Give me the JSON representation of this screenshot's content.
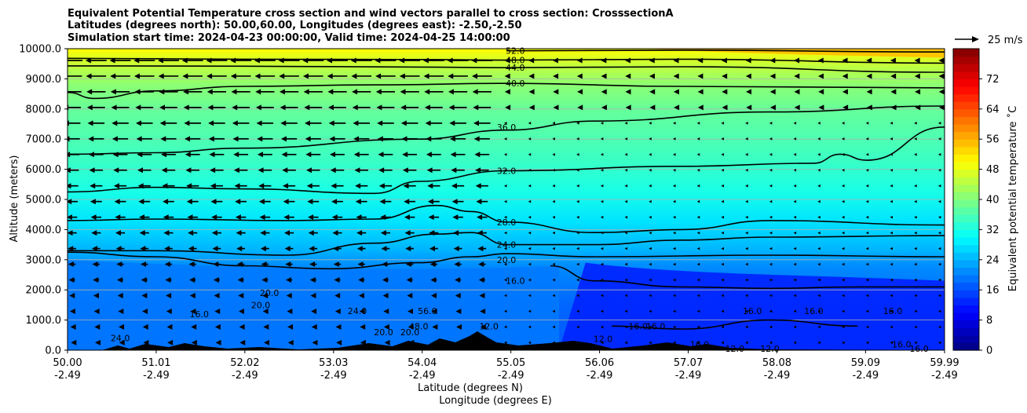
{
  "chart_data": {
    "type": "heatmap",
    "title_lines": [
      "Equivalent Potential Temperature cross section and wind vectors parallel to cross section: CrosssectionA",
      "Latitudes (degrees north): 50.00,60.00, Longitudes (degrees east): -2.50,-2.50",
      "Simulation start time: 2024-04-23 00:00:00, Valid time: 2024-04-25 14:00:00"
    ],
    "ylabel": "Altitude (meters)",
    "xlabel_lat": "Latitude (degrees N)",
    "xlabel_lon": "Longitude (degrees E)",
    "ylim": [
      0,
      10000
    ],
    "yticks": [
      0,
      1000,
      2000,
      3000,
      4000,
      5000,
      6000,
      7000,
      8000,
      9000,
      10000
    ],
    "ytick_labels": [
      "0.0",
      "1000.0",
      "2000.0",
      "3000.0",
      "4000.0",
      "5000.0",
      "6000.0",
      "7000.0",
      "8000.0",
      "9000.0",
      "10000.0"
    ],
    "xlim": [
      50.0,
      59.99
    ],
    "xticks": [
      50.0,
      51.01,
      52.02,
      53.03,
      54.04,
      55.05,
      56.06,
      57.07,
      58.08,
      59.09,
      59.99
    ],
    "xtick_lat_labels": [
      "50.00",
      "51.01",
      "52.02",
      "53.03",
      "54.04",
      "55.05",
      "56.06",
      "57.07",
      "58.08",
      "59.09",
      "59.99"
    ],
    "xtick_lon_labels": [
      "-2.49",
      "-2.49",
      "-2.49",
      "-2.49",
      "-2.49",
      "-2.49",
      "-2.49",
      "-2.49",
      "-2.49",
      "-2.49",
      "-2.49"
    ],
    "grid": "horizontal",
    "colorbar": {
      "label": "Equivalent potential temperature ˚C",
      "range": [
        0,
        80
      ],
      "ticks": [
        0,
        8,
        16,
        24,
        32,
        40,
        48,
        56,
        64,
        72
      ],
      "tick_labels": [
        "0",
        "8",
        "16",
        "24",
        "32",
        "40",
        "48",
        "56",
        "64",
        "72"
      ]
    },
    "quiver_key": {
      "label": "25 m/s",
      "speed": 25
    },
    "contour_labels": [
      "52.0",
      "48.0",
      "44.0",
      "40.0",
      "36.0",
      "32.0",
      "28.0",
      "24.0",
      "20.0",
      "16.0",
      "12.0",
      "20.0",
      "24.0",
      "16.0",
      "20.0",
      "24.0",
      "56.0",
      "48.0",
      "12.0",
      "16.0",
      "16.0",
      "16.0",
      "16.0",
      "12.0",
      "12.0",
      "16.0",
      "16.0",
      "20.0",
      "20.0",
      "16.0",
      "16.0"
    ],
    "contour_levels": [
      12,
      16,
      20,
      24,
      28,
      32,
      36,
      40,
      44,
      48,
      52
    ],
    "contours": [
      {
        "level": 52.0,
        "points": [
          [
            55.0,
            9930
          ],
          [
            57.0,
            9950
          ],
          [
            59.99,
            9890
          ]
        ]
      },
      {
        "level": 48.0,
        "points": [
          [
            50.0,
            9680
          ],
          [
            52.0,
            9650
          ],
          [
            54.0,
            9640
          ],
          [
            55.0,
            9620
          ],
          [
            57.0,
            9650
          ],
          [
            59.99,
            9520
          ]
        ]
      },
      {
        "level": 44.0,
        "points": [
          [
            50.0,
            9430
          ],
          [
            52.0,
            9420
          ],
          [
            54.0,
            9390
          ],
          [
            55.0,
            9370
          ],
          [
            57.0,
            9400
          ],
          [
            59.99,
            9220
          ]
        ]
      },
      {
        "level": 40.0,
        "points": [
          [
            50.0,
            8550
          ],
          [
            50.3,
            8350
          ],
          [
            51.0,
            8600
          ],
          [
            52.0,
            8750
          ],
          [
            53.5,
            8800
          ],
          [
            55.0,
            8850
          ],
          [
            57.0,
            8750
          ],
          [
            59.99,
            8700
          ]
        ]
      },
      {
        "level": 36.0,
        "points": [
          [
            50.0,
            6500
          ],
          [
            51.0,
            6550
          ],
          [
            52.0,
            6700
          ],
          [
            54.0,
            7000
          ],
          [
            55.0,
            7300
          ],
          [
            56.0,
            7600
          ],
          [
            58.0,
            7900
          ],
          [
            59.99,
            8100
          ]
        ]
      },
      {
        "level": 32.0,
        "points": [
          [
            50.0,
            5250
          ],
          [
            51.0,
            5400
          ],
          [
            52.0,
            5350
          ],
          [
            53.5,
            5200
          ],
          [
            54.0,
            5600
          ],
          [
            55.0,
            5950
          ],
          [
            57.0,
            6100
          ],
          [
            58.5,
            6200
          ],
          [
            58.8,
            6500
          ],
          [
            59.1,
            6300
          ],
          [
            59.99,
            7400
          ]
        ]
      },
      {
        "level": 28.0,
        "points": [
          [
            50.0,
            4300
          ],
          [
            51.0,
            4350
          ],
          [
            52.5,
            4300
          ],
          [
            53.5,
            4350
          ],
          [
            54.2,
            4800
          ],
          [
            54.6,
            4600
          ],
          [
            55.0,
            4250
          ],
          [
            56.0,
            3900
          ],
          [
            57.0,
            4000
          ],
          [
            58.0,
            4300
          ],
          [
            59.99,
            4150
          ]
        ]
      },
      {
        "level": 24.0,
        "points": [
          [
            50.0,
            3300
          ],
          [
            51.0,
            3300
          ],
          [
            52.5,
            3150
          ],
          [
            53.5,
            3550
          ],
          [
            54.2,
            3850
          ],
          [
            54.6,
            3900
          ],
          [
            55.0,
            3500
          ],
          [
            56.0,
            3500
          ],
          [
            57.0,
            3650
          ],
          [
            58.0,
            3750
          ],
          [
            59.99,
            3800
          ]
        ]
      },
      {
        "level": 20.0,
        "points": [
          [
            50.0,
            3250
          ],
          [
            51.0,
            3100
          ],
          [
            52.0,
            2800
          ],
          [
            53.0,
            2700
          ],
          [
            54.0,
            2900
          ],
          [
            54.6,
            3100
          ],
          [
            55.0,
            3200
          ],
          [
            56.0,
            3100
          ],
          [
            58.0,
            3150
          ],
          [
            59.99,
            3100
          ]
        ]
      },
      {
        "level": 16.0,
        "points": [
          [
            55.5,
            2800
          ],
          [
            56.0,
            2300
          ],
          [
            57.0,
            2100
          ],
          [
            58.0,
            2050
          ],
          [
            59.0,
            2100
          ],
          [
            59.99,
            2100
          ]
        ]
      },
      {
        "level": 12.0,
        "points": [
          [
            56.2,
            800
          ],
          [
            57.0,
            700
          ],
          [
            58.0,
            1000
          ],
          [
            59.0,
            800
          ]
        ]
      }
    ]
  }
}
